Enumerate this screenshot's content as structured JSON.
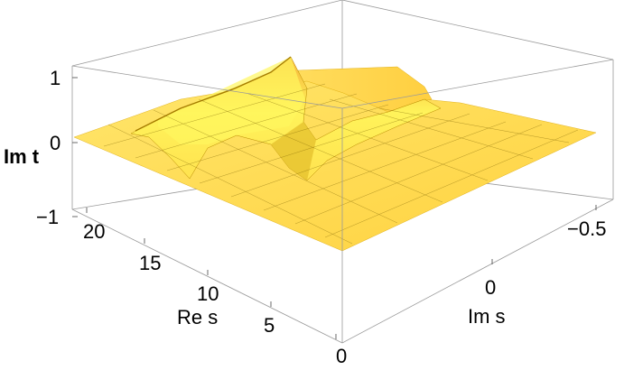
{
  "chart_data": {
    "type": "surface3d",
    "xlabel": "Re s",
    "ylabel": "Im s",
    "zlabel": "Im t",
    "x_ticks": [
      "0",
      "5",
      "10",
      "15",
      "20"
    ],
    "y_ticks": [
      "0",
      "−0.5"
    ],
    "z_ticks": [
      "1",
      "0",
      "−1"
    ],
    "x_range": [
      0,
      23
    ],
    "y_range": [
      -0.75,
      0.75
    ],
    "z_range": [
      -1,
      1
    ],
    "surface_color": "#ffdb4d",
    "surface_highlight": "#ffff66",
    "feature": "sharp ridge and trough in Im t near Re s ≈ 14, otherwise Im t ≈ 0"
  }
}
